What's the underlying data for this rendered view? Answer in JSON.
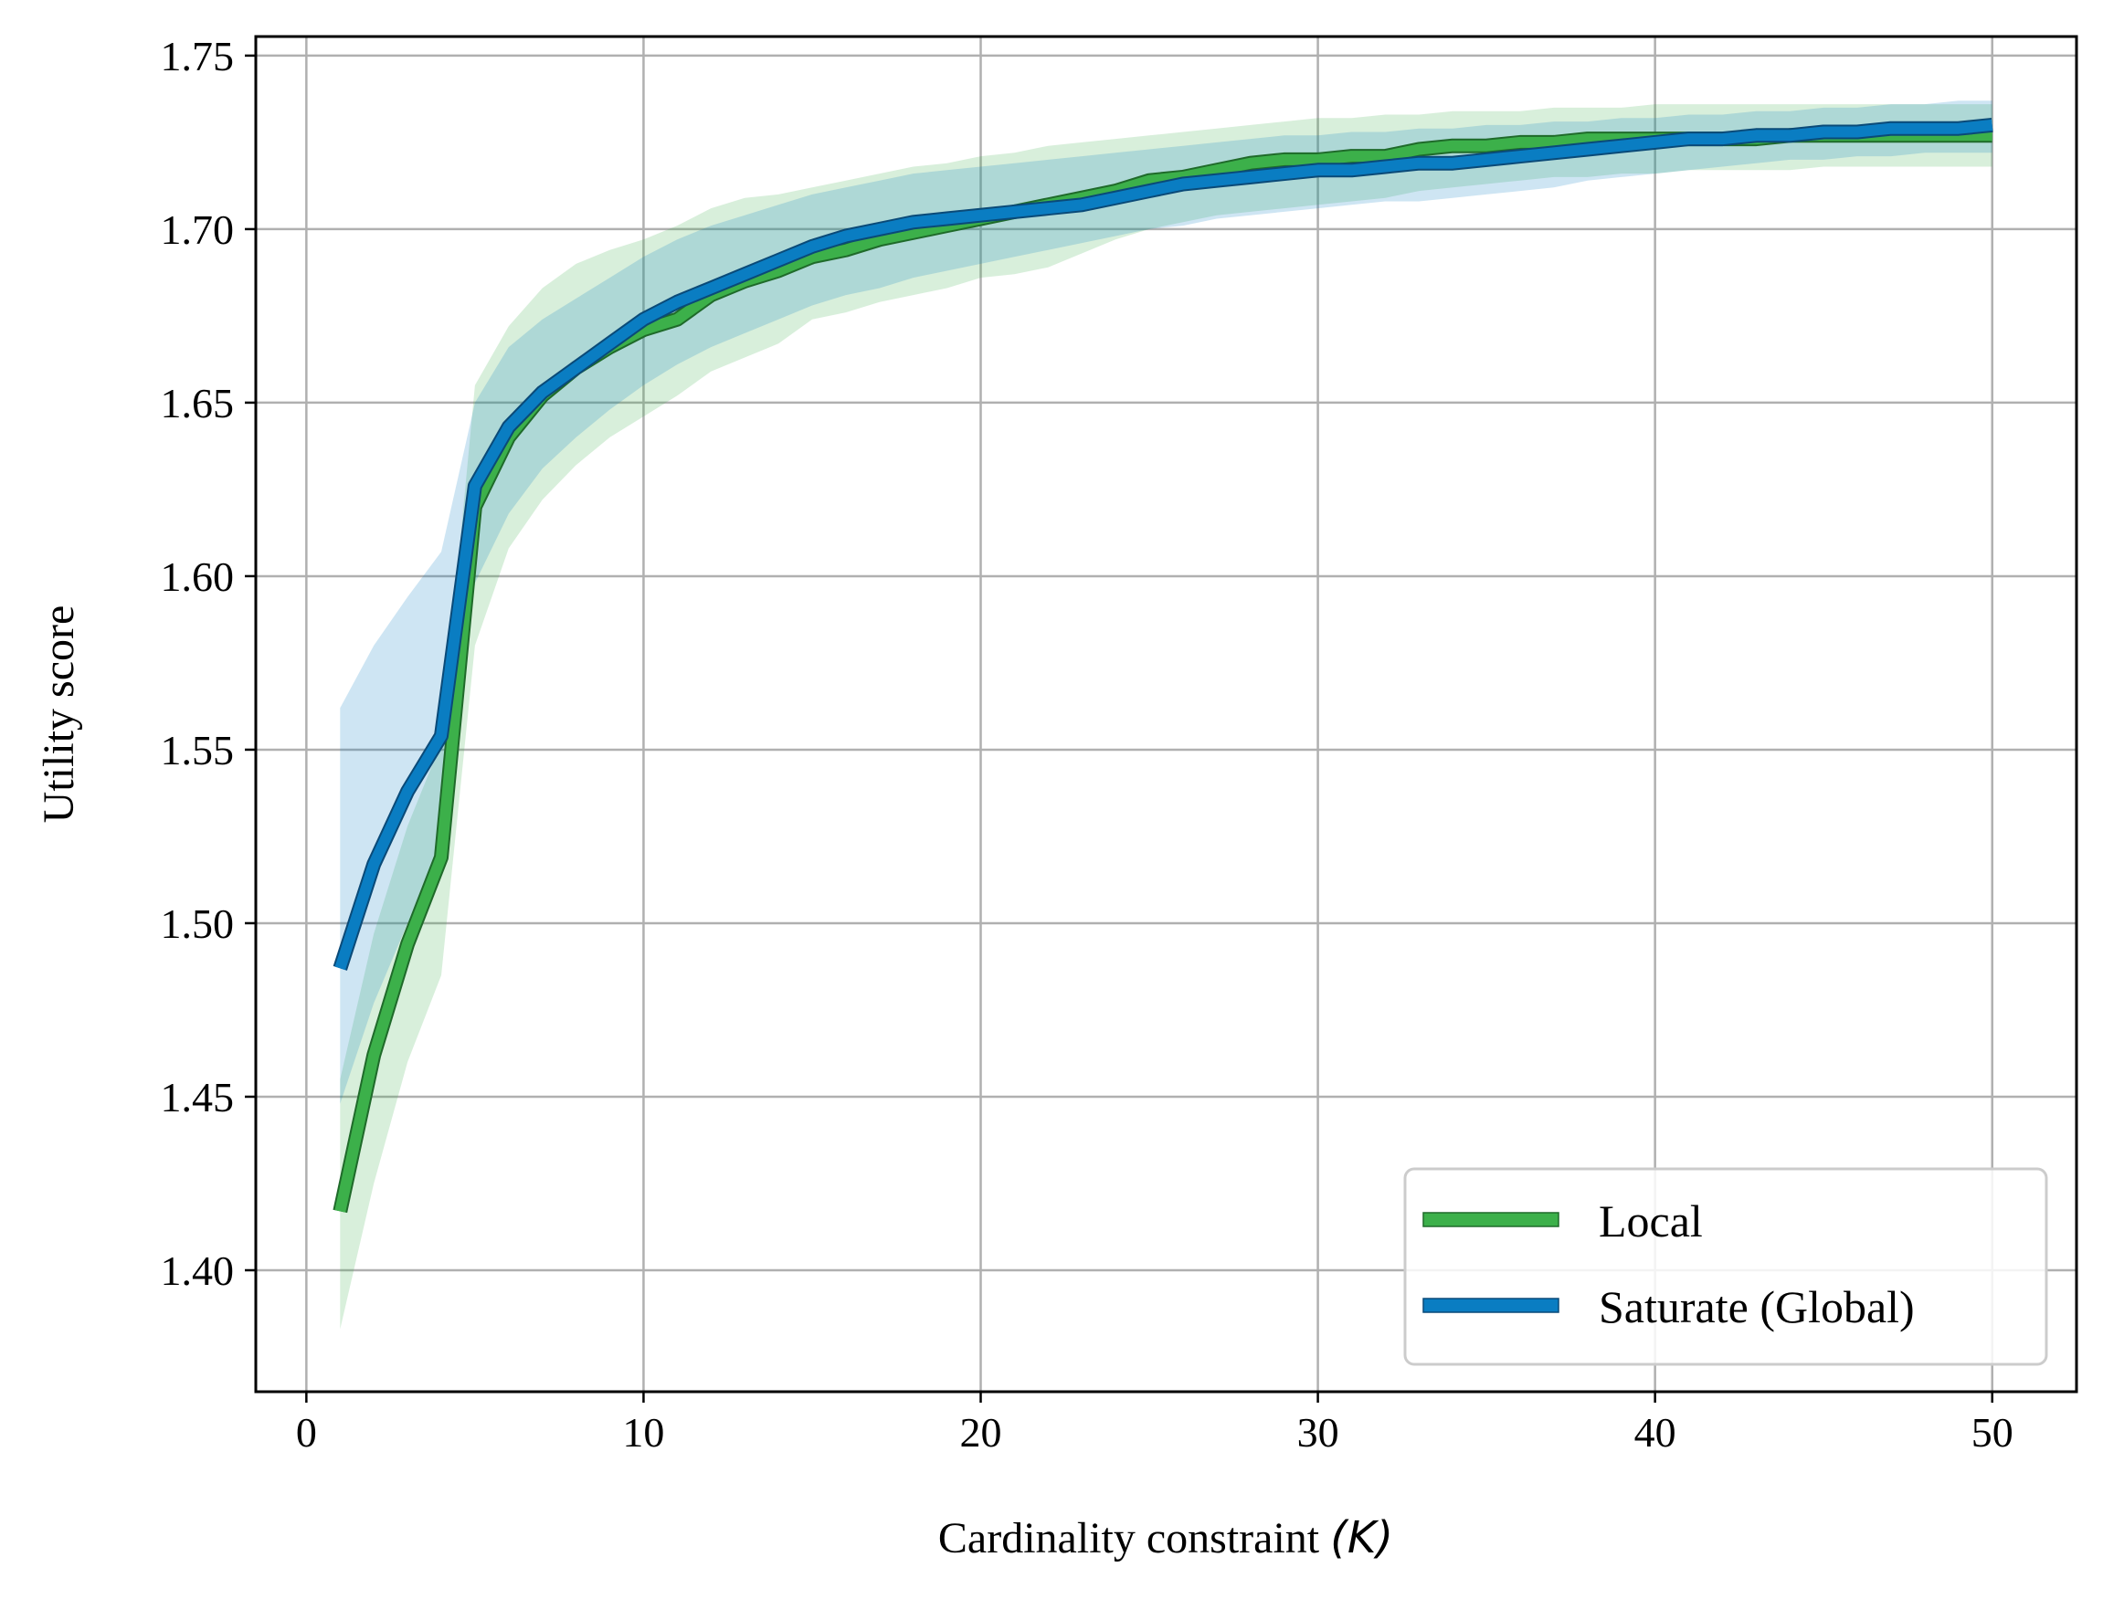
{
  "chart_data": {
    "type": "line",
    "title": "",
    "xlabel": "Cardinality constraint",
    "xlabel_math": "(K)",
    "ylabel": "Utility score",
    "xlim": [
      -1.5,
      52.5
    ],
    "ylim": [
      1.365,
      1.7555
    ],
    "xticks": [
      0,
      10,
      20,
      30,
      40,
      50
    ],
    "xtick_labels": [
      "0",
      "10",
      "20",
      "30",
      "40",
      "50"
    ],
    "yticks": [
      1.4,
      1.45,
      1.5,
      1.55,
      1.6,
      1.65,
      1.7,
      1.75
    ],
    "ytick_labels": [
      "1.40",
      "1.45",
      "1.50",
      "1.55",
      "1.60",
      "1.65",
      "1.70",
      "1.75"
    ],
    "grid": true,
    "legend_position": "bottom-right",
    "series": [
      {
        "name": "Local",
        "color": "#3cb04a",
        "x": [
          1,
          2,
          3,
          4,
          5,
          6,
          7,
          8,
          9,
          10,
          11,
          12,
          13,
          14,
          15,
          16,
          17,
          18,
          19,
          20,
          21,
          22,
          23,
          24,
          25,
          26,
          27,
          28,
          29,
          30,
          31,
          32,
          33,
          34,
          35,
          36,
          37,
          38,
          39,
          40,
          41,
          42,
          43,
          44,
          45,
          46,
          47,
          48,
          49,
          50
        ],
        "values": [
          1.417,
          1.462,
          1.494,
          1.519,
          1.62,
          1.64,
          1.652,
          1.66,
          1.666,
          1.671,
          1.674,
          1.681,
          1.685,
          1.688,
          1.692,
          1.694,
          1.697,
          1.699,
          1.701,
          1.703,
          1.705,
          1.707,
          1.709,
          1.711,
          1.714,
          1.715,
          1.717,
          1.719,
          1.72,
          1.72,
          1.721,
          1.721,
          1.723,
          1.724,
          1.724,
          1.725,
          1.725,
          1.726,
          1.726,
          1.726,
          1.726,
          1.726,
          1.726,
          1.727,
          1.727,
          1.727,
          1.727,
          1.727,
          1.727,
          1.727
        ],
        "lower": [
          1.383,
          1.425,
          1.46,
          1.485,
          1.58,
          1.608,
          1.622,
          1.632,
          1.64,
          1.646,
          1.652,
          1.659,
          1.663,
          1.667,
          1.674,
          1.676,
          1.679,
          1.681,
          1.683,
          1.686,
          1.687,
          1.689,
          1.693,
          1.697,
          1.7,
          1.702,
          1.704,
          1.705,
          1.706,
          1.707,
          1.708,
          1.709,
          1.711,
          1.712,
          1.713,
          1.714,
          1.715,
          1.715,
          1.716,
          1.716,
          1.717,
          1.717,
          1.717,
          1.717,
          1.718,
          1.718,
          1.718,
          1.718,
          1.718,
          1.718
        ],
        "upper": [
          1.455,
          1.497,
          1.528,
          1.552,
          1.655,
          1.672,
          1.683,
          1.69,
          1.694,
          1.697,
          1.701,
          1.706,
          1.709,
          1.71,
          1.712,
          1.714,
          1.716,
          1.718,
          1.719,
          1.721,
          1.722,
          1.724,
          1.725,
          1.726,
          1.727,
          1.728,
          1.729,
          1.73,
          1.731,
          1.732,
          1.732,
          1.733,
          1.733,
          1.734,
          1.734,
          1.734,
          1.735,
          1.735,
          1.735,
          1.736,
          1.736,
          1.736,
          1.736,
          1.736,
          1.736,
          1.736,
          1.736,
          1.736,
          1.736,
          1.736
        ]
      },
      {
        "name": "Saturate (Global)",
        "color": "#0a7dc2",
        "x": [
          1,
          2,
          3,
          4,
          5,
          6,
          7,
          8,
          9,
          10,
          11,
          12,
          13,
          14,
          15,
          16,
          17,
          18,
          19,
          20,
          21,
          22,
          23,
          24,
          25,
          26,
          27,
          28,
          29,
          30,
          31,
          32,
          33,
          34,
          35,
          36,
          37,
          38,
          39,
          40,
          41,
          42,
          43,
          44,
          45,
          46,
          47,
          48,
          49,
          50
        ],
        "values": [
          1.487,
          1.517,
          1.538,
          1.554,
          1.626,
          1.643,
          1.653,
          1.66,
          1.667,
          1.674,
          1.679,
          1.683,
          1.687,
          1.691,
          1.695,
          1.698,
          1.7,
          1.702,
          1.703,
          1.704,
          1.705,
          1.706,
          1.707,
          1.709,
          1.711,
          1.713,
          1.714,
          1.715,
          1.716,
          1.717,
          1.717,
          1.718,
          1.719,
          1.719,
          1.72,
          1.721,
          1.722,
          1.723,
          1.724,
          1.725,
          1.726,
          1.726,
          1.727,
          1.727,
          1.728,
          1.728,
          1.729,
          1.729,
          1.729,
          1.73
        ],
        "lower": [
          1.448,
          1.477,
          1.5,
          1.518,
          1.598,
          1.618,
          1.631,
          1.64,
          1.648,
          1.655,
          1.661,
          1.666,
          1.67,
          1.674,
          1.678,
          1.681,
          1.683,
          1.686,
          1.688,
          1.69,
          1.692,
          1.694,
          1.696,
          1.698,
          1.7,
          1.701,
          1.703,
          1.704,
          1.705,
          1.706,
          1.707,
          1.708,
          1.708,
          1.709,
          1.71,
          1.711,
          1.712,
          1.714,
          1.715,
          1.716,
          1.717,
          1.718,
          1.719,
          1.72,
          1.72,
          1.721,
          1.721,
          1.722,
          1.722,
          1.722
        ],
        "upper": [
          1.562,
          1.58,
          1.594,
          1.607,
          1.65,
          1.666,
          1.674,
          1.68,
          1.686,
          1.692,
          1.697,
          1.701,
          1.704,
          1.707,
          1.71,
          1.712,
          1.714,
          1.716,
          1.717,
          1.718,
          1.719,
          1.72,
          1.721,
          1.722,
          1.723,
          1.724,
          1.725,
          1.726,
          1.727,
          1.727,
          1.728,
          1.728,
          1.729,
          1.729,
          1.73,
          1.73,
          1.731,
          1.731,
          1.732,
          1.732,
          1.733,
          1.733,
          1.734,
          1.734,
          1.735,
          1.735,
          1.736,
          1.736,
          1.737,
          1.737
        ]
      }
    ]
  }
}
